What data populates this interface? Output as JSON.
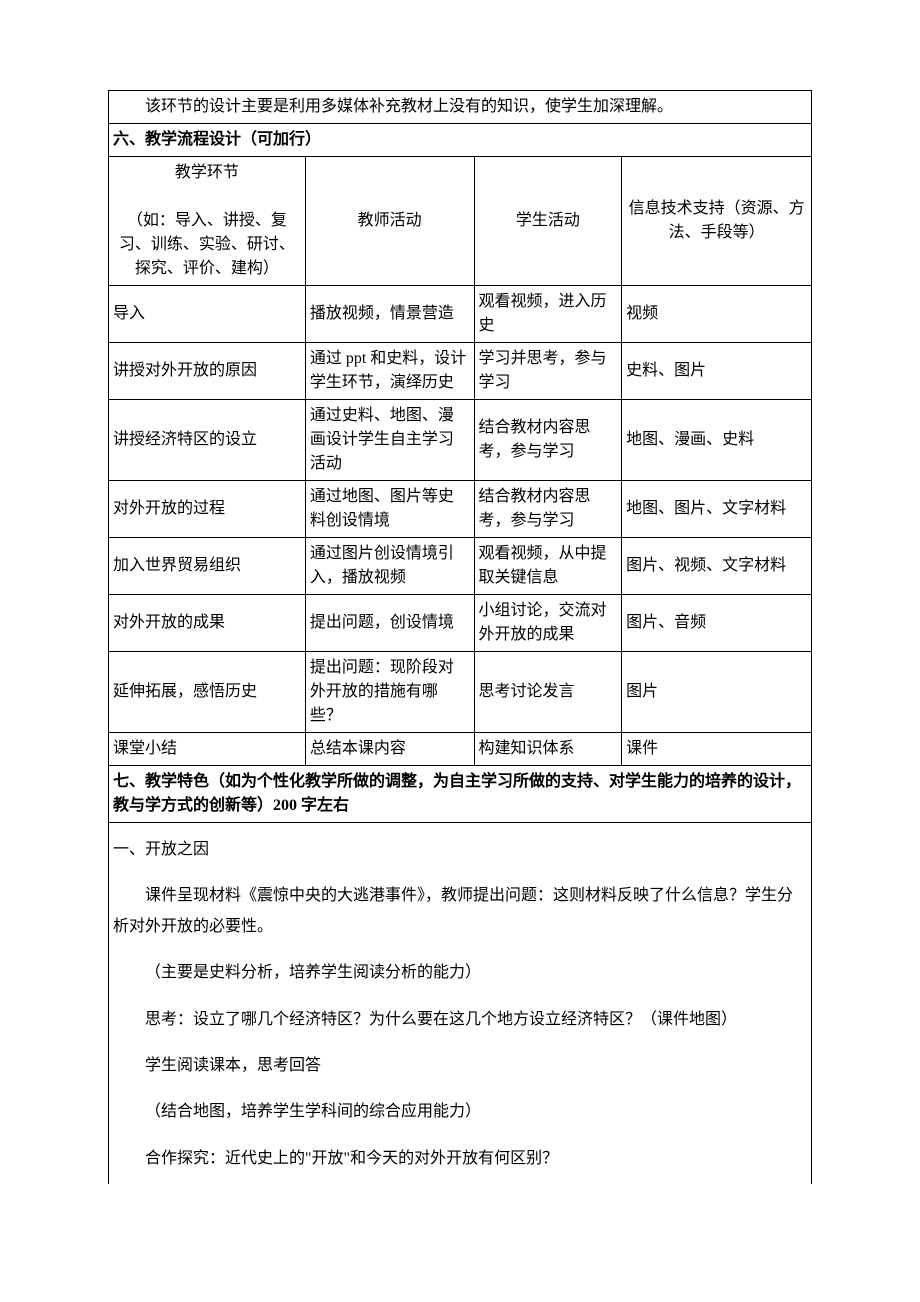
{
  "intro_row": "　　该环节的设计主要是利用多媒体补充教材上没有的知识，使学生加深理解。",
  "section6_header": "六、教学流程设计（可加行）",
  "table_headers": {
    "col1": "教学环节\n\n（如：导入、讲授、复习、训练、实验、研讨、探究、评价、建构）",
    "col2": "教师活动",
    "col3": "学生活动",
    "col4": "信息技术支持（资源、方法、手段等）"
  },
  "rows": [
    {
      "c1": "导入",
      "c2": "播放视频，情景营造",
      "c3": "观看视频，进入历史",
      "c4": "视频"
    },
    {
      "c1": "讲授对外开放的原因",
      "c2": "通过 ppt 和史料，设计学生环节，演绎历史",
      "c3": "学习并思考，参与学习",
      "c4": "史料、图片"
    },
    {
      "c1": "讲授经济特区的设立",
      "c2": "通过史料、地图、漫画设计学生自主学习活动",
      "c3": "结合教材内容思考，参与学习",
      "c4": "地图、漫画、史料"
    },
    {
      "c1": "对外开放的过程",
      "c2": "通过地图、图片等史料创设情境",
      "c3": "结合教材内容思考，参与学习",
      "c4": "地图、图片、文字材料"
    },
    {
      "c1": "加入世界贸易组织",
      "c2": "通过图片创设情境引入，播放视频",
      "c3": "观看视频，从中提取关键信息",
      "c4": "图片、视频、文字材料"
    },
    {
      "c1": "对外开放的成果",
      "c2": "提出问题，创设情境",
      "c3": "小组讨论，交流对外开放的成果",
      "c4": "图片、音频"
    },
    {
      "c1": "延伸拓展，感悟历史",
      "c2": "提出问题：现阶段对外开放的措施有哪些？",
      "c3": "思考讨论发言",
      "c4": "图片"
    },
    {
      "c1": "课堂小结",
      "c2": "总结本课内容",
      "c3": "构建知识体系",
      "c4": "课件"
    }
  ],
  "section7_header": "七、教学特色（如为个性化教学所做的调整，为自主学习所做的支持、对学生能力的培养的设计，教与学方式的创新等）200 字左右",
  "body": {
    "p1": "一、开放之因",
    "p2": "课件呈现材料《震惊中央的大逃港事件》，教师提出问题：这则材料反映了什么信息？学生分析对外开放的必要性。",
    "p3": "（主要是史料分析，培养学生阅读分析的能力）",
    "p4": "思考：设立了哪几个经济特区？为什么要在这几个地方设立经济特区？（课件地图）",
    "p5": "学生阅读课本，思考回答",
    "p6": "（结合地图，培养学生学科间的综合应用能力）",
    "p7": "合作探究：近代史上的\"开放\"和今天的对外开放有何区别？"
  }
}
